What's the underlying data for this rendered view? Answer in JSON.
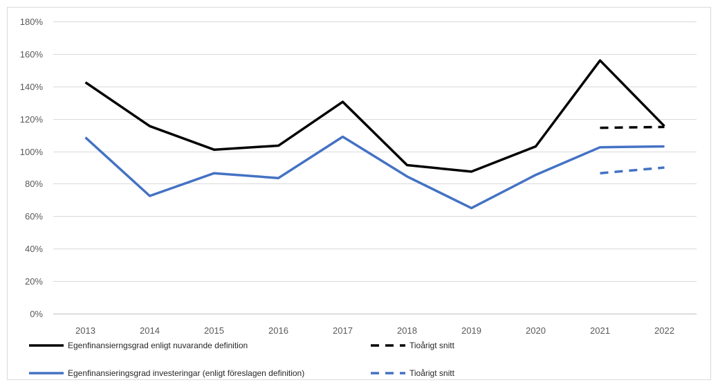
{
  "chart_data": {
    "type": "line",
    "title": "",
    "xlabel": "",
    "ylabel": "",
    "categories": [
      "2013",
      "2014",
      "2015",
      "2016",
      "2017",
      "2018",
      "2019",
      "2020",
      "2021",
      "2022"
    ],
    "ylim": [
      0,
      180
    ],
    "y_ticks": [
      0,
      20,
      40,
      60,
      80,
      100,
      120,
      140,
      160,
      180
    ],
    "y_tick_labels": [
      "0%",
      "20%",
      "40%",
      "60%",
      "80%",
      "100%",
      "120%",
      "140%",
      "160%",
      "180%"
    ],
    "grid": true,
    "legend_position": "bottom",
    "series": [
      {
        "name": "Egenfinansierngsgrad enligt nuvarande definition",
        "color": "#000000",
        "dash": "solid",
        "values": [
          142.5,
          115.5,
          101,
          103.5,
          130.5,
          91.5,
          87.5,
          103,
          156,
          115.5
        ]
      },
      {
        "name": "Tioårigt snitt",
        "color": "#000000",
        "dash": "dashed",
        "values": [
          null,
          null,
          null,
          null,
          null,
          null,
          null,
          null,
          114.5,
          115
        ]
      },
      {
        "name": "Egenfinansieringsgrad investeringar (enligt föreslagen definition)",
        "color": "#4472C4",
        "dash": "solid",
        "values": [
          108.5,
          72.5,
          86.5,
          83.5,
          109,
          84.5,
          65,
          85.5,
          102.5,
          103
        ]
      },
      {
        "name": "Tioårigt snitt",
        "color": "#4472C4",
        "dash": "dashed",
        "values": [
          null,
          null,
          null,
          null,
          null,
          null,
          null,
          null,
          86.5,
          90
        ]
      }
    ]
  }
}
